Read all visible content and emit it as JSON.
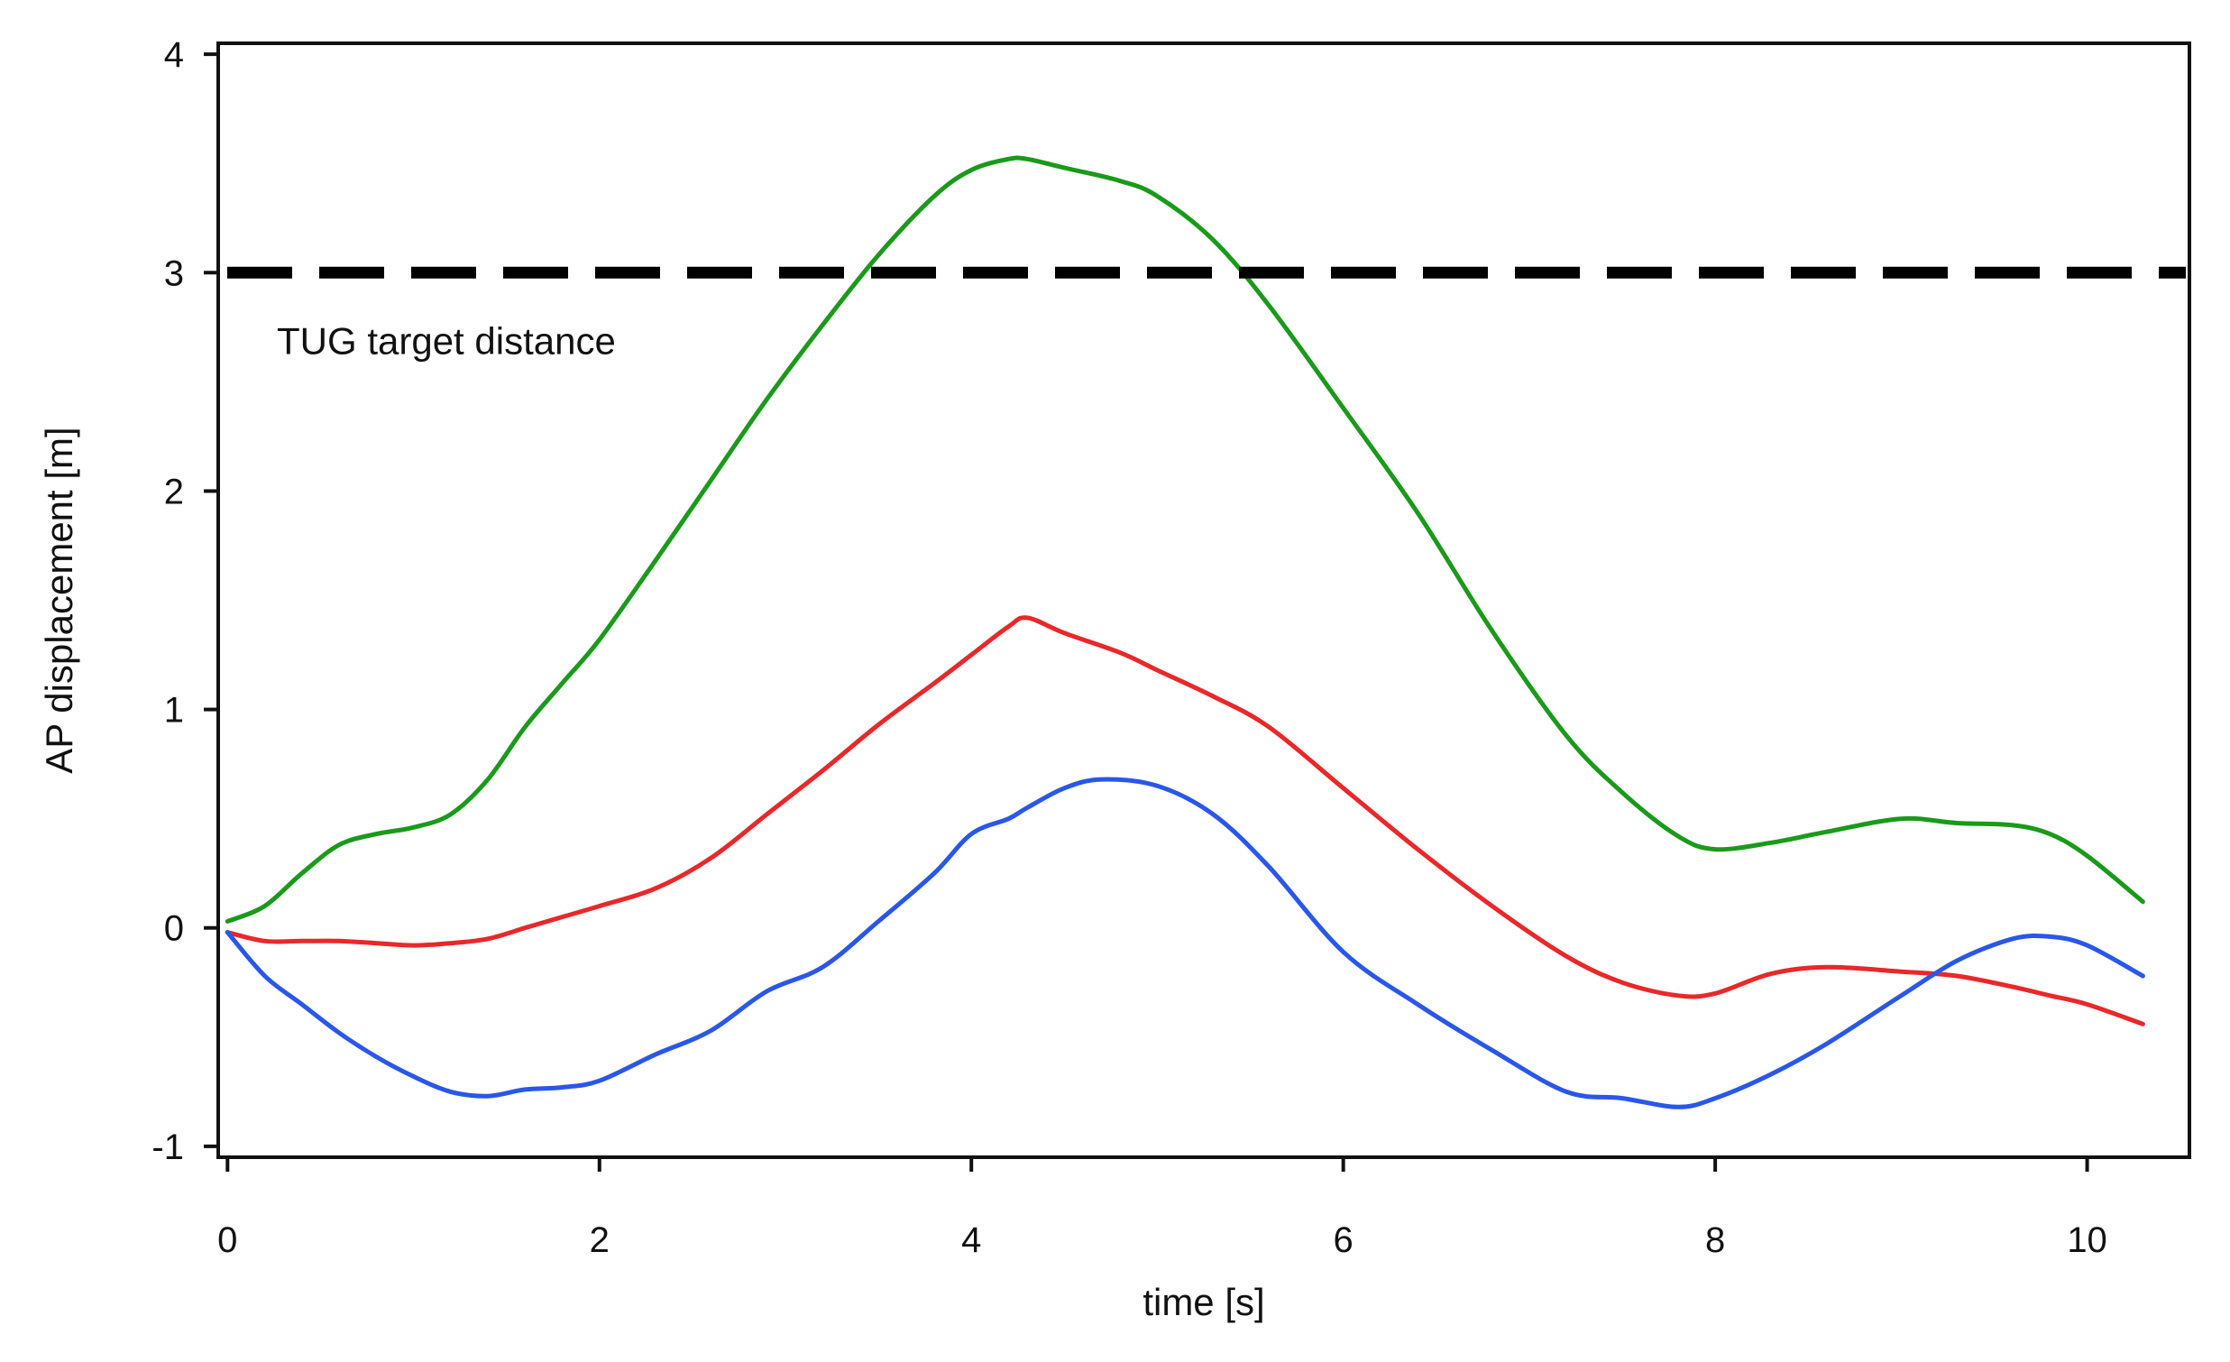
{
  "chart_data": {
    "type": "line",
    "title": "",
    "xlabel": "time [s]",
    "ylabel": "AP displacement [m]",
    "xlim": [
      -0.05,
      10.55
    ],
    "ylim": [
      -1.05,
      4.05
    ],
    "xticks": [
      0,
      2,
      4,
      6,
      8,
      10
    ],
    "yticks": [
      -1,
      0,
      1,
      2,
      3,
      4
    ],
    "xtick_labels": [
      "0",
      "2",
      "4",
      "6",
      "8",
      "10"
    ],
    "ytick_labels": [
      "-1",
      "0",
      "1",
      "2",
      "3",
      "4"
    ],
    "grid": false,
    "reference_line": {
      "y": 3,
      "style": "dashed",
      "color": "#000000",
      "label": "TUG target distance"
    },
    "series": [
      {
        "name": "green",
        "color": "#1a9a1a",
        "x": [
          0,
          0.2,
          0.4,
          0.6,
          0.8,
          1.0,
          1.2,
          1.4,
          1.6,
          1.8,
          2.0,
          2.3,
          2.6,
          2.9,
          3.2,
          3.5,
          3.8,
          4.0,
          4.2,
          4.3,
          4.5,
          4.8,
          5.0,
          5.3,
          5.6,
          6.0,
          6.4,
          6.8,
          7.2,
          7.5,
          7.8,
          8.0,
          8.3,
          8.6,
          9.0,
          9.3,
          9.6,
          9.8,
          10.0,
          10.3
        ],
        "y": [
          0.03,
          0.1,
          0.25,
          0.38,
          0.43,
          0.46,
          0.52,
          0.68,
          0.92,
          1.12,
          1.32,
          1.68,
          2.05,
          2.42,
          2.76,
          3.08,
          3.35,
          3.47,
          3.52,
          3.52,
          3.48,
          3.42,
          3.35,
          3.15,
          2.85,
          2.38,
          1.9,
          1.36,
          0.88,
          0.62,
          0.42,
          0.36,
          0.39,
          0.44,
          0.5,
          0.48,
          0.47,
          0.43,
          0.33,
          0.12
        ]
      },
      {
        "name": "red",
        "color": "#e8282a",
        "x": [
          0,
          0.2,
          0.4,
          0.6,
          0.8,
          1.0,
          1.2,
          1.4,
          1.6,
          1.8,
          2.0,
          2.3,
          2.6,
          2.9,
          3.2,
          3.5,
          3.8,
          4.0,
          4.2,
          4.3,
          4.5,
          4.8,
          5.0,
          5.3,
          5.6,
          6.0,
          6.4,
          6.8,
          7.2,
          7.5,
          7.8,
          8.0,
          8.3,
          8.6,
          9.0,
          9.3,
          9.6,
          9.8,
          10.0,
          10.3
        ],
        "y": [
          -0.02,
          -0.06,
          -0.06,
          -0.06,
          -0.07,
          -0.08,
          -0.07,
          -0.05,
          0.0,
          0.05,
          0.1,
          0.18,
          0.32,
          0.52,
          0.72,
          0.93,
          1.12,
          1.25,
          1.38,
          1.42,
          1.35,
          1.26,
          1.18,
          1.06,
          0.92,
          0.64,
          0.36,
          0.1,
          -0.13,
          -0.25,
          -0.31,
          -0.3,
          -0.21,
          -0.18,
          -0.2,
          -0.22,
          -0.27,
          -0.31,
          -0.35,
          -0.44
        ]
      },
      {
        "name": "blue",
        "color": "#2a57e8",
        "x": [
          0,
          0.2,
          0.4,
          0.6,
          0.8,
          1.0,
          1.2,
          1.4,
          1.6,
          1.8,
          2.0,
          2.3,
          2.6,
          2.9,
          3.2,
          3.5,
          3.8,
          4.0,
          4.2,
          4.3,
          4.5,
          4.7,
          5.0,
          5.3,
          5.6,
          6.0,
          6.4,
          6.8,
          7.2,
          7.5,
          7.8,
          8.0,
          8.3,
          8.6,
          9.0,
          9.3,
          9.6,
          9.8,
          10.0,
          10.3
        ],
        "y": [
          -0.02,
          -0.22,
          -0.35,
          -0.48,
          -0.59,
          -0.68,
          -0.75,
          -0.77,
          -0.74,
          -0.73,
          -0.7,
          -0.58,
          -0.47,
          -0.29,
          -0.18,
          0.03,
          0.25,
          0.43,
          0.5,
          0.55,
          0.64,
          0.68,
          0.65,
          0.52,
          0.28,
          -0.11,
          -0.35,
          -0.56,
          -0.75,
          -0.78,
          -0.82,
          -0.78,
          -0.67,
          -0.53,
          -0.31,
          -0.15,
          -0.05,
          -0.04,
          -0.08,
          -0.22
        ]
      }
    ]
  }
}
